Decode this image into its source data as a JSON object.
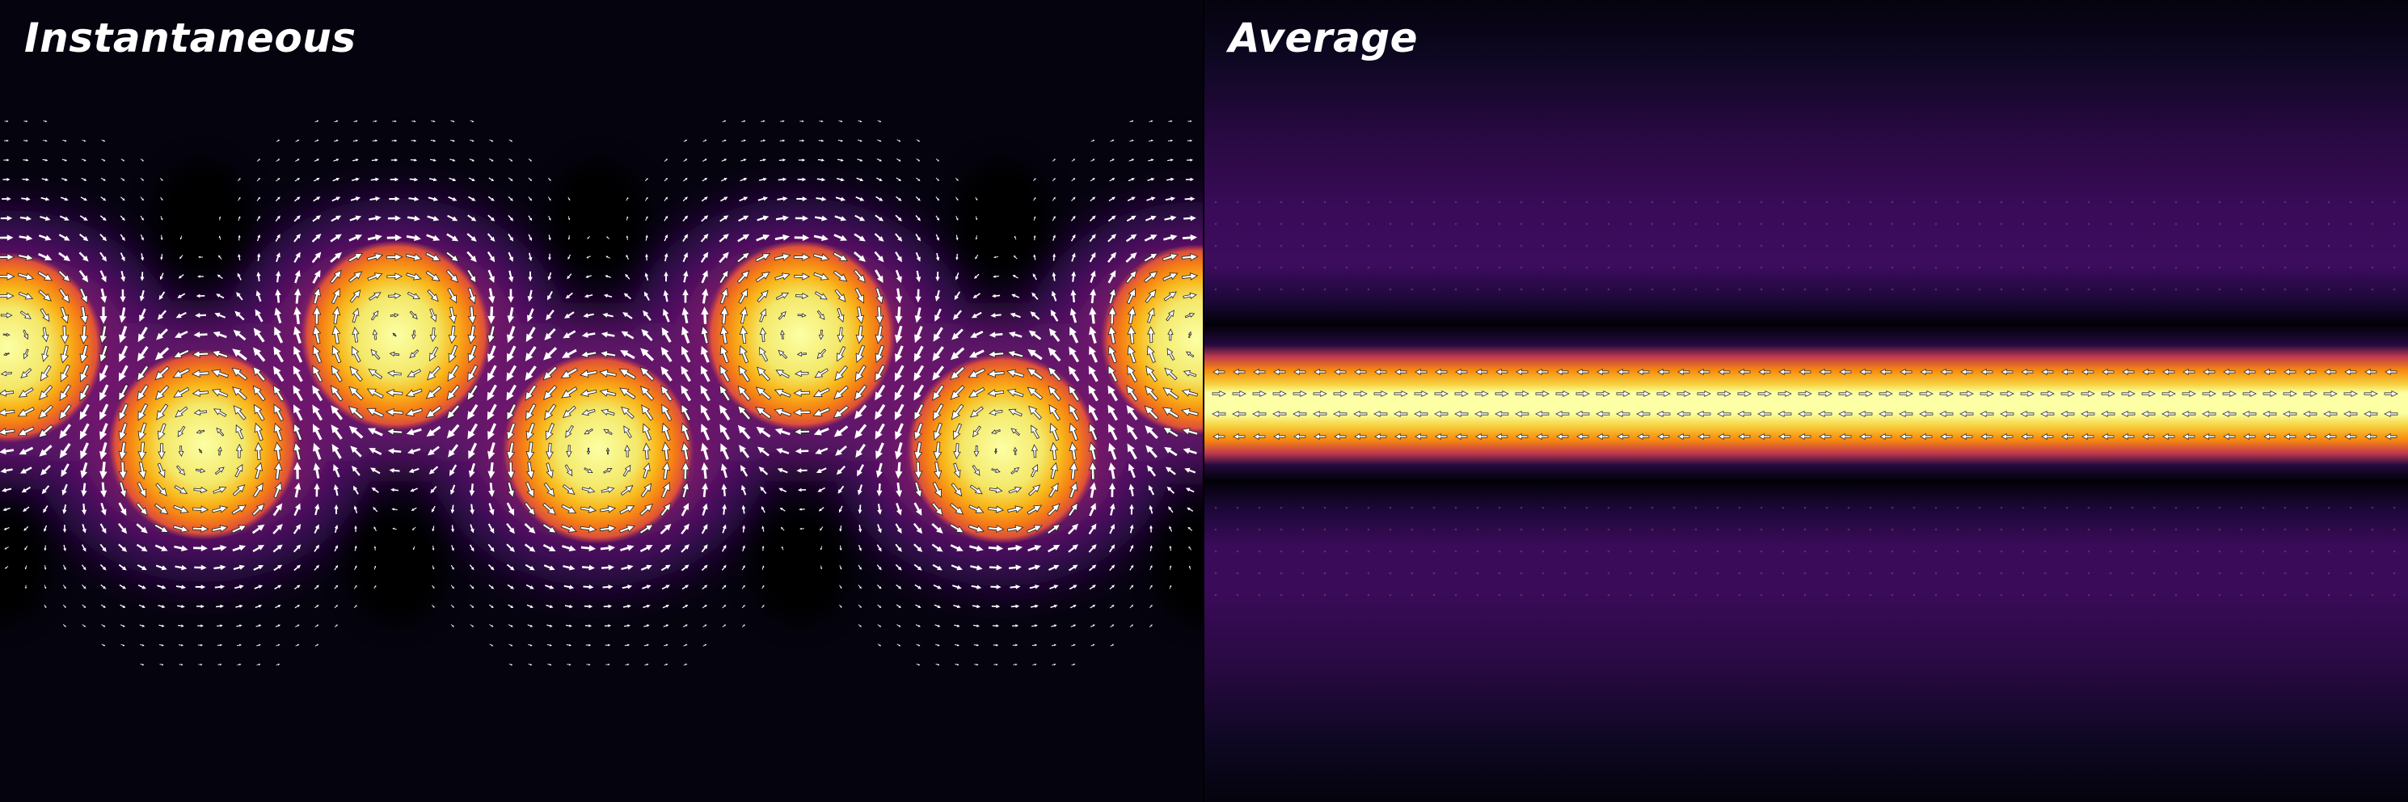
{
  "panels": {
    "left": {
      "title": "Instantaneous"
    },
    "right": {
      "title": "Average"
    }
  },
  "colormap": "inferno",
  "colors": {
    "background": "#05030e",
    "divider": "#000000",
    "arrow_fill": "#ffffff",
    "arrow_stroke": "#222222"
  }
}
